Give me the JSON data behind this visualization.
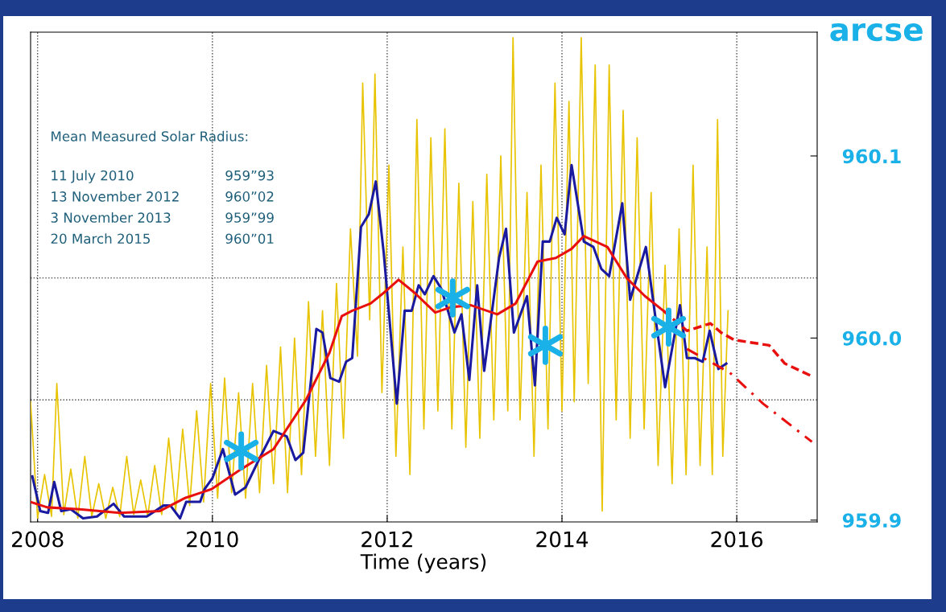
{
  "chart_data": {
    "type": "line",
    "xlabel": "Time (years)",
    "ylabel": "arcse",
    "xlim": [
      2007.92,
      2016.92
    ],
    "xticks": [
      2008,
      2010,
      2012,
      2014,
      2016
    ],
    "ylim": [
      959.899,
      960.168
    ],
    "yticks": [
      959.9,
      {
        "value": 960.0,
        "label": "960.0"
      },
      960.1
    ],
    "grid": "x",
    "ref_lines": [
      {
        "axis": "y",
        "value": 959.966,
        "line_style": "dotted",
        "color": "#444444"
      },
      {
        "axis": "y",
        "value": 960.033,
        "line_style": "dotted",
        "color": "#444444"
      }
    ],
    "annotations": [
      "Mean Measured Solar Radius:",
      "11 July 2010",
      "13 November 2012",
      "3 November 2013",
      "20 March 2015",
      "959”93",
      "960”02",
      "959”99",
      "960”01"
    ],
    "series": [
      {
        "color": "#e8c400",
        "line_style": "solid",
        "x": [
          2007.92,
          2008.0,
          2008.08,
          2008.16,
          2008.22,
          2008.3,
          2008.38,
          2008.46,
          2008.54,
          2008.62,
          2008.7,
          2008.78,
          2008.86,
          2008.94,
          2009.02,
          2009.1,
          2009.18,
          2009.26,
          2009.34,
          2009.42,
          2009.5,
          2009.58,
          2009.66,
          2009.74,
          2009.82,
          2009.9,
          2009.98,
          2010.06,
          2010.14,
          2010.22,
          2010.3,
          2010.38,
          2010.46,
          2010.54,
          2010.62,
          2010.7,
          2010.78,
          2010.86,
          2010.94,
          2011.02,
          2011.1,
          2011.18,
          2011.26,
          2011.34,
          2011.42,
          2011.5,
          2011.58,
          2011.66,
          2011.72,
          2011.8,
          2011.86,
          2011.94,
          2012.02,
          2012.1,
          2012.18,
          2012.26,
          2012.34,
          2012.42,
          2012.5,
          2012.58,
          2012.66,
          2012.74,
          2012.82,
          2012.9,
          2012.98,
          2013.06,
          2013.14,
          2013.22,
          2013.3,
          2013.38,
          2013.44,
          2013.52,
          2013.6,
          2013.68,
          2013.76,
          2013.84,
          2013.92,
          2014.0,
          2014.08,
          2014.14,
          2014.22,
          2014.3,
          2014.38,
          2014.46,
          2014.54,
          2014.62,
          2014.7,
          2014.78,
          2014.86,
          2014.94,
          2015.02,
          2015.1,
          2015.18,
          2015.26,
          2015.34,
          2015.42,
          2015.5,
          2015.58,
          2015.66,
          2015.72,
          2015.78,
          2015.84,
          2015.9
        ],
        "values": [
          959.965,
          959.901,
          959.925,
          959.902,
          959.975,
          959.903,
          959.928,
          959.901,
          959.935,
          959.902,
          959.92,
          959.901,
          959.918,
          959.902,
          959.935,
          959.903,
          959.922,
          959.902,
          959.93,
          959.903,
          959.945,
          959.905,
          959.95,
          959.908,
          959.96,
          959.91,
          959.975,
          959.912,
          959.978,
          959.915,
          959.97,
          959.912,
          959.975,
          959.915,
          959.985,
          959.92,
          959.995,
          959.915,
          960.0,
          959.925,
          960.02,
          959.935,
          960.015,
          959.93,
          960.03,
          959.945,
          960.06,
          959.99,
          960.14,
          960.01,
          960.145,
          959.97,
          960.095,
          959.935,
          960.05,
          959.925,
          960.12,
          959.95,
          960.11,
          959.96,
          960.115,
          959.95,
          960.085,
          959.94,
          960.075,
          959.945,
          960.09,
          959.955,
          960.1,
          959.96,
          960.165,
          959.955,
          960.08,
          959.935,
          960.095,
          959.95,
          960.14,
          959.96,
          960.13,
          959.965,
          960.165,
          959.975,
          960.15,
          959.905,
          960.15,
          959.955,
          960.125,
          959.945,
          960.11,
          959.95,
          960.08,
          959.93,
          960.04,
          959.92,
          960.06,
          959.925,
          960.095,
          959.93,
          960.05,
          959.925,
          960.12,
          959.935,
          960.015
        ]
      },
      {
        "color": "#1a1aa0",
        "line_style": "solid",
        "x": [
          2007.94,
          2008.03,
          2008.12,
          2008.19,
          2008.27,
          2008.38,
          2008.52,
          2008.68,
          2008.87,
          2008.99,
          2009.25,
          2009.44,
          2009.52,
          2009.63,
          2009.7,
          2009.86,
          2009.91,
          2010.0,
          2010.12,
          2010.26,
          2010.38,
          2010.53,
          2010.7,
          2010.85,
          2010.95,
          2011.04,
          2011.19,
          2011.26,
          2011.35,
          2011.45,
          2011.53,
          2011.6,
          2011.7,
          2011.79,
          2011.87,
          2011.96,
          2012.11,
          2012.2,
          2012.28,
          2012.36,
          2012.43,
          2012.53,
          2012.62,
          2012.77,
          2012.85,
          2012.94,
          2013.03,
          2013.11,
          2013.28,
          2013.36,
          2013.45,
          2013.6,
          2013.69,
          2013.78,
          2013.86,
          2013.94,
          2014.03,
          2014.11,
          2014.25,
          2014.36,
          2014.45,
          2014.54,
          2014.69,
          2014.78,
          2014.96,
          2015.09,
          2015.18,
          2015.35,
          2015.43,
          2015.52,
          2015.61,
          2015.69,
          2015.79,
          2015.88
        ],
        "values": [
          959.924,
          959.905,
          959.904,
          959.921,
          959.905,
          959.906,
          959.901,
          959.902,
          959.909,
          959.902,
          959.902,
          959.908,
          959.908,
          959.901,
          959.91,
          959.91,
          959.917,
          959.923,
          959.939,
          959.914,
          959.918,
          959.933,
          959.949,
          959.946,
          959.933,
          959.937,
          960.005,
          960.003,
          959.978,
          959.976,
          959.987,
          959.989,
          960.061,
          960.068,
          960.086,
          960.047,
          959.964,
          960.015,
          960.015,
          960.029,
          960.024,
          960.034,
          960.027,
          960.003,
          960.013,
          959.977,
          960.029,
          959.982,
          960.044,
          960.06,
          960.003,
          960.023,
          959.974,
          960.053,
          960.053,
          960.066,
          960.057,
          960.095,
          960.053,
          960.05,
          960.038,
          960.034,
          960.074,
          960.021,
          960.05,
          960.004,
          959.973,
          960.018,
          959.989,
          959.989,
          959.987,
          960.004,
          959.983,
          959.986
        ]
      },
      {
        "color": "#e8100e",
        "line_style": "solid",
        "x": [
          2007.92,
          2008.11,
          2008.48,
          2008.94,
          2009.4,
          2009.68,
          2009.99,
          2010.33,
          2010.7,
          2011.07,
          2011.34,
          2011.48,
          2011.6,
          2011.81,
          2011.99,
          2012.13,
          2012.31,
          2012.55,
          2012.73,
          2012.96,
          2013.26,
          2013.47,
          2013.72,
          2013.93,
          2014.11,
          2014.25,
          2014.52,
          2014.74,
          2014.95,
          2015.16
        ],
        "values": [
          959.91,
          959.907,
          959.906,
          959.904,
          959.905,
          959.912,
          959.917,
          959.928,
          959.939,
          959.966,
          959.992,
          960.012,
          960.015,
          960.019,
          960.026,
          960.032,
          960.025,
          960.014,
          960.017,
          960.018,
          960.013,
          960.019,
          960.042,
          960.044,
          960.049,
          960.056,
          960.05,
          960.033,
          960.023,
          960.015
        ]
      },
      {
        "color": "#e8100e",
        "line_style": "dashed",
        "x": [
          2015.16,
          2015.43,
          2015.7,
          2015.82,
          2015.97,
          2016.37,
          2016.55,
          2016.86
        ],
        "values": [
          960.015,
          960.004,
          960.008,
          960.003,
          959.999,
          959.996,
          959.986,
          959.979
        ]
      },
      {
        "color": "#e8100e",
        "line_style": "dashdot",
        "x": [
          2015.43,
          2015.92,
          2016.3,
          2016.86
        ],
        "values": [
          959.994,
          959.981,
          959.964,
          959.943
        ]
      },
      {
        "type": "scatter",
        "color": "#1ab0e8",
        "marker": "cross",
        "x": [
          2010.33,
          2012.75,
          2013.81,
          2015.22
        ],
        "values": [
          959.938,
          960.022,
          959.996,
          960.006
        ]
      }
    ]
  }
}
